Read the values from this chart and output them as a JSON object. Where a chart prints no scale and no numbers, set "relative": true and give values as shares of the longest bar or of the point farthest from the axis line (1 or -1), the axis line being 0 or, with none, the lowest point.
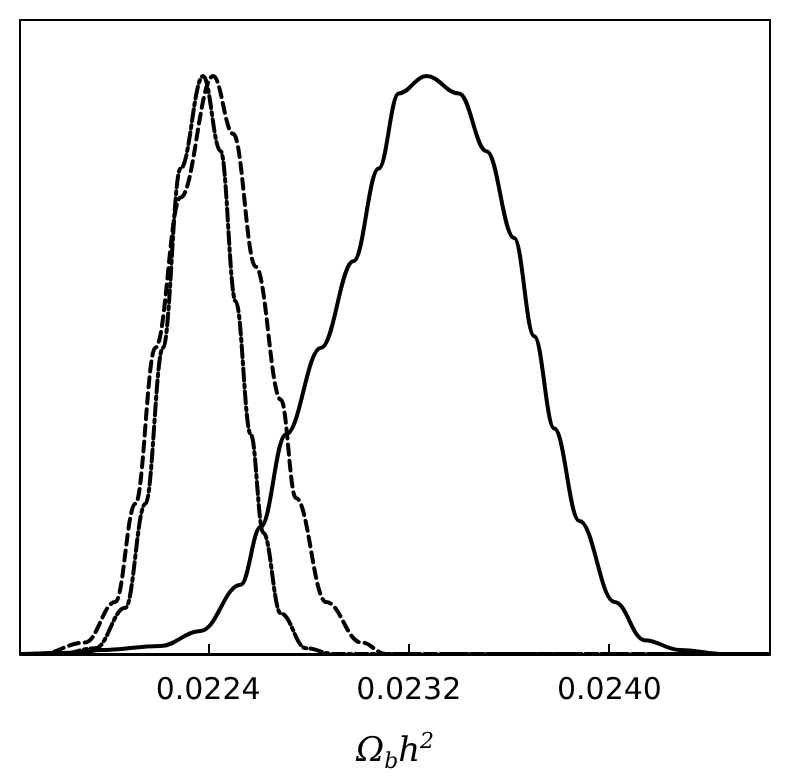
{
  "chart_data": {
    "type": "line",
    "xlabel": "Ω$_{b}$h$^{2}$",
    "relative": true,
    "xlim": [
      0.02165,
      0.02464
    ],
    "xticks": [
      0.0224,
      0.0232,
      {
        "value": 0.024,
        "label": "0.0240"
      }
    ],
    "grid": false,
    "marker": "none",
    "series": [
      {
        "color": "#000000",
        "line_style": "solid",
        "x": [
          0.02166,
          0.02189,
          0.02197,
          0.02221,
          0.02237,
          0.02253,
          0.02261,
          0.02271,
          0.02285,
          0.02298,
          0.02308,
          0.02316,
          0.02327,
          0.0234,
          0.02351,
          0.02362,
          0.0237,
          0.02378,
          0.02388,
          0.02402,
          0.02414,
          0.02428,
          0.02446,
          0.02463
        ],
        "values": [
          0,
          0.002,
          0.007,
          0.014,
          0.04,
          0.12,
          0.22,
          0.38,
          0.53,
          0.68,
          0.84,
          0.97,
          1,
          0.97,
          0.87,
          0.72,
          0.55,
          0.39,
          0.23,
          0.09,
          0.024,
          0.007,
          0,
          0
        ]
      },
      {
        "color": "#000000",
        "line_style": "dashed",
        "x": [
          0.02166,
          0.02173,
          0.02191,
          0.02203,
          0.02211,
          0.02219,
          0.02229,
          0.02242,
          0.0225,
          0.02259,
          0.02269,
          0.02275,
          0.02287,
          0.02301,
          0.02311,
          0.02463
        ],
        "values": [
          0,
          0,
          0.02,
          0.09,
          0.26,
          0.53,
          0.79,
          1,
          0.9,
          0.67,
          0.44,
          0.27,
          0.09,
          0.02,
          0,
          0
        ]
      },
      {
        "color": "#000000",
        "line_style": "dashdot",
        "x": [
          0.02166,
          0.02181,
          0.02195,
          0.02207,
          0.02215,
          0.02222,
          0.02229,
          0.02238,
          0.02245,
          0.02251,
          0.02257,
          0.02262,
          0.02269,
          0.02279,
          0.0229,
          0.02463
        ],
        "values": [
          0,
          0,
          0.01,
          0.08,
          0.26,
          0.53,
          0.84,
          1,
          0.87,
          0.61,
          0.38,
          0.21,
          0.07,
          0.01,
          0,
          0
        ]
      }
    ]
  }
}
